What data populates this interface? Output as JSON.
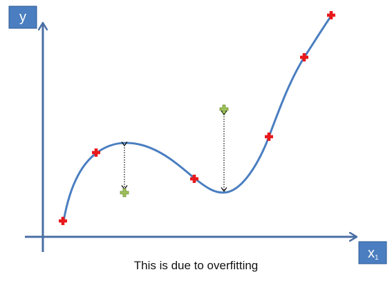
{
  "diagram": {
    "y_axis_label": "y",
    "x_axis_label": "x",
    "x_axis_label_subscript": "1",
    "caption": "This is due to overfitting",
    "colors": {
      "axis": "#4a6fa5",
      "curve": "#4a7ec0",
      "label_box": "#4a7ec0",
      "training_point": "#e8191b",
      "test_point": "#8db24a",
      "error_arrow": "#000000"
    },
    "icons": {
      "training_point": "red-plus-marker-icon",
      "test_point": "green-plus-marker-icon"
    }
  }
}
